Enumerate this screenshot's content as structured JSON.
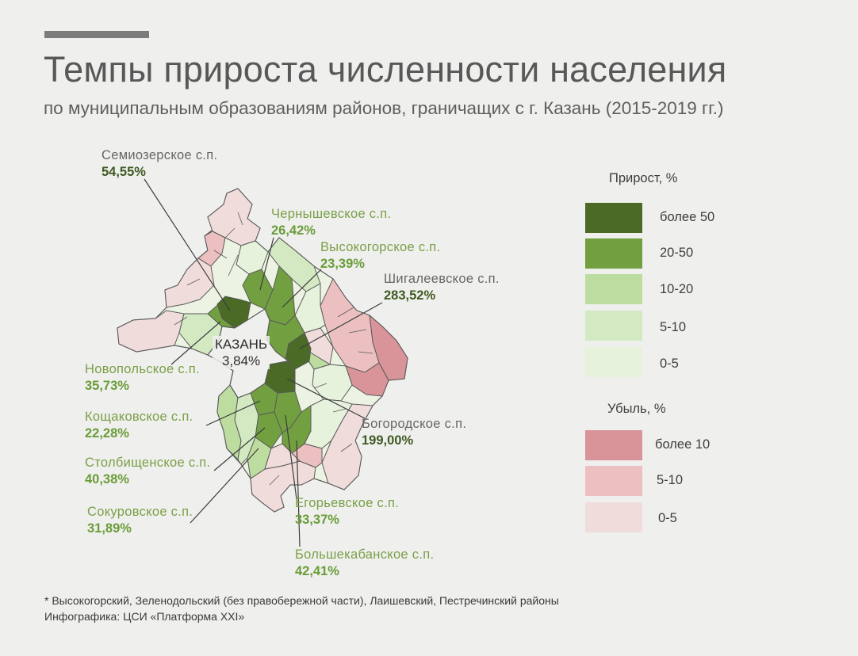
{
  "header": {
    "title": "Темпы прироста численности населения",
    "subtitle": "по муниципальным образованиям районов, граничащих с г. Казань (2015-2019 гг.)"
  },
  "map": {
    "city": {
      "name": "КАЗАНЬ",
      "value": "3,84%"
    },
    "labels": [
      {
        "key": "semiozerskoe",
        "name": "Семиозерское с.п.",
        "value": "54,55%",
        "category": "более 50"
      },
      {
        "key": "chernyshevskoe",
        "name": "Чернышевское с.п.",
        "value": "26,42%",
        "category": "20-50"
      },
      {
        "key": "vysokogorskoe",
        "name": "Высокогорское с.п.",
        "value": "23,39%",
        "category": "20-50"
      },
      {
        "key": "shigaleevskoe",
        "name": "Шигалеевское с.п.",
        "value": "283,52%",
        "category": "более 50"
      },
      {
        "key": "novopolskoe",
        "name": "Новопольское с.п.",
        "value": "35,73%",
        "category": "20-50"
      },
      {
        "key": "koshchakovskoe",
        "name": "Кощаковское с.п.",
        "value": "22,28%",
        "category": "20-50"
      },
      {
        "key": "stolbishchenskoe",
        "name": "Столбищенское с.п.",
        "value": "40,38%",
        "category": "20-50"
      },
      {
        "key": "sokurovskoe",
        "name": "Сокуровское с.п.",
        "value": "31,89%",
        "category": "20-50"
      },
      {
        "key": "bogorodskoe",
        "name": "Богородское с.п.",
        "value": "199,00%",
        "category": "более 50"
      },
      {
        "key": "egorevskoe",
        "name": "Егорьевское с.п.",
        "value": "33,37%",
        "category": "20-50"
      },
      {
        "key": "bolshekabanskoe",
        "name": "Большекабанское с.п.",
        "value": "42,41%",
        "category": "20-50"
      }
    ]
  },
  "legend": {
    "growth": {
      "title": "Прирост, %",
      "items": [
        {
          "label": "более 50",
          "color": "#4a6a26"
        },
        {
          "label": "20-50",
          "color": "#72a040"
        },
        {
          "label": "10-20",
          "color": "#bcdca0"
        },
        {
          "label": "5-10",
          "color": "#d3e9c2"
        },
        {
          "label": "0-5",
          "color": "#e6f2dc"
        }
      ]
    },
    "decline": {
      "title": "Убыль, %",
      "items": [
        {
          "label": "более 10",
          "color": "#d9949a"
        },
        {
          "label": "5-10",
          "color": "#ecc0c0"
        },
        {
          "label": "0-5",
          "color": "#f1dcdc"
        }
      ]
    }
  },
  "footer": {
    "note": "* Высокогорский, Зеленодольский (без правобережной части), Лаишевский, Пестречинский районы",
    "credit": "Инфографика: ЦСИ «Платформа XXI»"
  }
}
